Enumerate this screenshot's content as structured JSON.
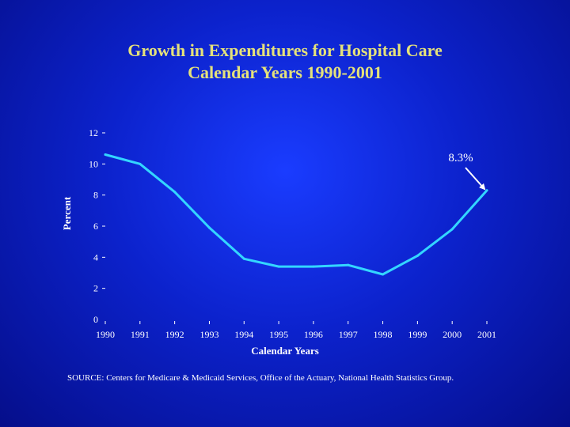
{
  "chart_data": {
    "type": "line",
    "title": "Growth in Expenditures for Hospital Care",
    "subtitle": "Calendar Years 1990-2001",
    "xlabel": "Calendar Years",
    "ylabel": "Percent",
    "x": [
      "1990",
      "1991",
      "1992",
      "1993",
      "1994",
      "1995",
      "1996",
      "1997",
      "1998",
      "1999",
      "2000",
      "2001"
    ],
    "series": [
      {
        "name": "Growth in Expenditures for Hospital Care",
        "values": [
          10.6,
          10.0,
          8.2,
          5.9,
          3.9,
          3.4,
          3.4,
          3.5,
          2.9,
          4.1,
          5.8,
          8.3
        ]
      }
    ],
    "yticks": [
      "0",
      "2",
      "4",
      "6",
      "8",
      "10",
      "12"
    ],
    "ylim": [
      0,
      12
    ],
    "annotation": {
      "text": "8.3%",
      "target_index": 11
    },
    "line_color": "#33d6ff",
    "grid": false
  },
  "source": "SOURCE: Centers for Medicare & Medicaid Services, Office of the Actuary, National  Health Statistics Group."
}
